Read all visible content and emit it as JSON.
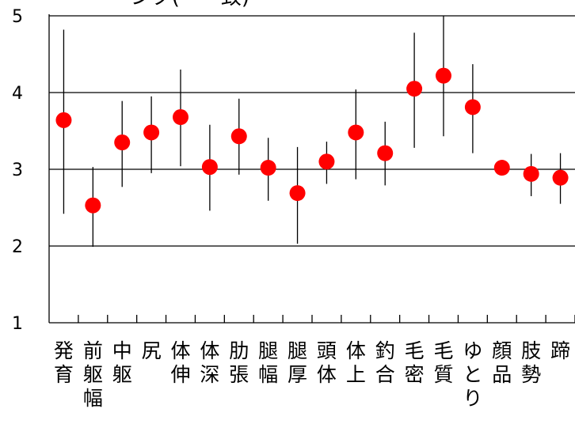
{
  "chart_data": {
    "type": "scatter",
    "title": "ーンク(ーー致)",
    "ylim": [
      1,
      5
    ],
    "yticks": [
      1,
      2,
      3,
      4,
      5
    ],
    "grid": "horizontal at 2, 3, 4",
    "legend": "none",
    "marker_color": "#ff0000",
    "errorbar_color": "#000000",
    "categories": [
      [
        "発",
        "育"
      ],
      [
        "前",
        "躯",
        "幅"
      ],
      [
        "中",
        "躯"
      ],
      [
        "尻"
      ],
      [
        "体",
        "伸"
      ],
      [
        "体",
        "深"
      ],
      [
        "肋",
        "張"
      ],
      [
        "腿",
        "幅"
      ],
      [
        "腿",
        "厚"
      ],
      [
        "頭",
        "体"
      ],
      [
        "体",
        "上"
      ],
      [
        "釣",
        "合"
      ],
      [
        "毛",
        "密"
      ],
      [
        "毛",
        "質"
      ],
      [
        "ゆ",
        "と",
        "り"
      ],
      [
        "顔",
        "品"
      ],
      [
        "肢",
        "勢"
      ],
      [
        "蹄"
      ]
    ],
    "series": [
      {
        "values": [
          3.64,
          2.53,
          3.35,
          3.48,
          3.68,
          3.03,
          3.43,
          3.02,
          2.69,
          3.1,
          3.48,
          3.21,
          4.05,
          4.22,
          3.81,
          3.02,
          2.94,
          2.89
        ],
        "err_low": [
          2.42,
          1.99,
          2.77,
          2.95,
          3.04,
          2.46,
          2.93,
          2.59,
          2.03,
          2.81,
          2.87,
          2.79,
          3.28,
          3.43,
          3.21,
          3.02,
          2.65,
          2.55
        ],
        "err_high": [
          4.82,
          3.03,
          3.89,
          3.95,
          4.3,
          3.58,
          3.92,
          3.41,
          3.29,
          3.36,
          4.04,
          3.62,
          4.78,
          5.0,
          4.37,
          3.02,
          3.2,
          3.21
        ]
      }
    ]
  }
}
